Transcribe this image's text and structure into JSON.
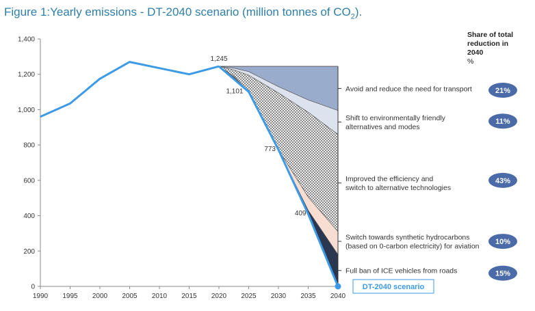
{
  "page": {
    "title": "Figure 1:Yearly emissions - DT-2040 scenario (million tonnes of CO",
    "title_sub": "2",
    "title_end": ")."
  },
  "share_header": {
    "line1": "Share of total",
    "line2": "reduction in",
    "line3": "2040",
    "unit": "%"
  },
  "chart_data": {
    "type": "area",
    "title": "Figure 1:Yearly emissions - DT-2040 scenario (million tonnes of CO2).",
    "xlabel": "",
    "ylabel": "",
    "xlim": [
      1990,
      2040
    ],
    "ylim": [
      0,
      1400
    ],
    "x_ticks": [
      1990,
      1995,
      2000,
      2005,
      2010,
      2015,
      2020,
      2025,
      2030,
      2035,
      2040
    ],
    "y_ticks": [
      0,
      200,
      400,
      600,
      800,
      1000,
      1200,
      1400
    ],
    "y_tick_labels": [
      "0",
      "200",
      "400",
      "600",
      "800",
      "1,000",
      "1,200",
      "1,400"
    ],
    "historical": {
      "x": [
        1990,
        1995,
        2000,
        2005,
        2010,
        2015,
        2020
      ],
      "y": [
        960,
        1035,
        1175,
        1270,
        1235,
        1200,
        1245
      ]
    },
    "scenario": {
      "name": "DT-2040 scenario",
      "x": [
        2020,
        2025,
        2030,
        2035,
        2040
      ],
      "y": [
        1245,
        1101,
        773,
        409,
        0
      ]
    },
    "data_labels": [
      {
        "x": 2020,
        "y": 1245,
        "text": "1,245"
      },
      {
        "x": 2025,
        "y": 1101,
        "text": "1,101"
      },
      {
        "x": 2030,
        "y": 773,
        "text": "773"
      },
      {
        "x": 2035,
        "y": 409,
        "text": "409"
      }
    ],
    "wedge_x": [
      2020,
      2022.5,
      2025,
      2030,
      2035,
      2040
    ],
    "wedges": [
      {
        "label": "Avoid and reduce the need for transport",
        "share": "21%",
        "color": "#9aaccb",
        "pattern": false,
        "upper": [
          1245,
          1245,
          1245,
          1245,
          1245,
          1245
        ],
        "lower": [
          1245,
          1235,
          1215,
          1130,
          1055,
          995
        ]
      },
      {
        "label": "Shift to environmentally friendly alternatives and modes",
        "share": "11%",
        "color": "#dde3ee",
        "pattern": false,
        "upper": [
          1245,
          1235,
          1215,
          1130,
          1055,
          995
        ],
        "lower": [
          1245,
          1225,
          1195,
          1095,
          985,
          860
        ]
      },
      {
        "label": "Improved the efficiency and switch to alternative technologies",
        "share": "43%",
        "color": "#ffffff",
        "pattern": true,
        "upper": [
          1245,
          1225,
          1195,
          1095,
          985,
          860
        ],
        "lower": [
          1245,
          1190,
          1101,
          773,
          505,
          310
        ]
      },
      {
        "label": "Switch towards synthetic hydrocarbons (based on 0-carbon electricity) for aviation",
        "share": "10%",
        "color": "#f8ddd2",
        "pattern": false,
        "upper": [
          1245,
          1190,
          1101,
          773,
          505,
          310
        ],
        "lower": [
          1245,
          1185,
          1101,
          773,
          430,
          180
        ]
      },
      {
        "label": "Full ban of ICE vehicles from roads",
        "share": "15%",
        "color": "#2b3650",
        "pattern": false,
        "upper": [
          1245,
          1185,
          1101,
          773,
          430,
          180
        ],
        "lower": [
          1245,
          1180,
          1101,
          773,
          409,
          0
        ]
      }
    ],
    "category_labels": [
      {
        "lines": [
          "Avoid and reduce the need for transport"
        ],
        "y": 1120
      },
      {
        "lines": [
          "Shift to environmentally friendly",
          "alternatives and modes"
        ],
        "y": 930
      },
      {
        "lines": [
          "Improved the efficiency and",
          "switch to alternative technologies"
        ],
        "y": 585
      },
      {
        "lines": [
          "Switch towards synthetic hydrocarbons",
          "(based on 0-carbon electricity) for aviation"
        ],
        "y": 255
      },
      {
        "lines": [
          "Full ban of ICE vehicles from roads"
        ],
        "y": 90
      }
    ],
    "badges": [
      {
        "text": "21%",
        "y": 1110
      },
      {
        "text": "11%",
        "y": 935
      },
      {
        "text": "43%",
        "y": 600
      },
      {
        "text": "10%",
        "y": 255
      },
      {
        "text": "15%",
        "y": 75
      }
    ],
    "scenario_box_label": "DT-2040 scenario",
    "colors": {
      "line": "#3c9ae6",
      "badge": "#4a6aa8",
      "axis": "#888888",
      "box_border": "#3c9ae6",
      "box_text": "#3c9ae6"
    }
  }
}
